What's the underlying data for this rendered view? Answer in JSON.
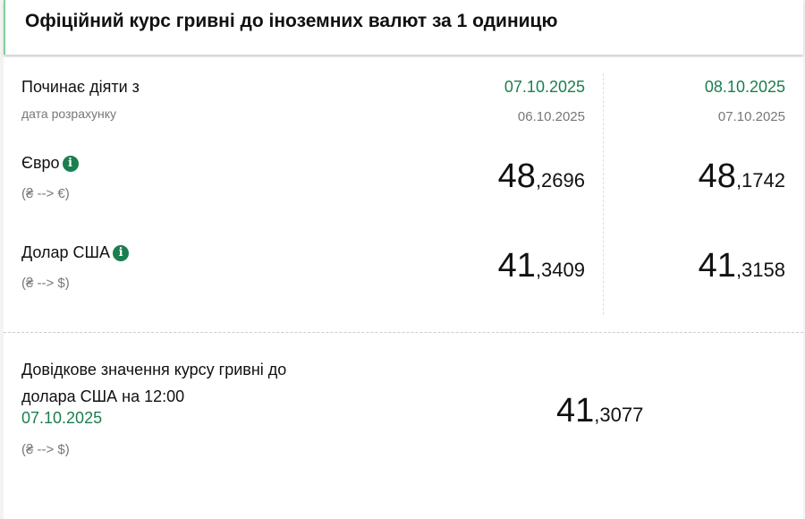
{
  "title": "Офіційний курс гривні до іноземних валют за 1 одиницю",
  "effective_label": "Починає діяти з",
  "calc_label": "дата розрахунку",
  "columns": [
    {
      "effective": "07.10.2025",
      "calc": "06.10.2025",
      "eur": {
        "int": "48",
        "frac": ",2696"
      },
      "usd": {
        "int": "41",
        "frac": ",3409"
      }
    },
    {
      "effective": "08.10.2025",
      "calc": "07.10.2025",
      "eur": {
        "int": "48",
        "frac": ",1742"
      },
      "usd": {
        "int": "41",
        "frac": ",3158"
      }
    }
  ],
  "currencies": {
    "eur": {
      "name": "Євро",
      "pair": "(₴ --> €)"
    },
    "usd": {
      "name": "Долар США",
      "pair": "(₴ --> $)"
    }
  },
  "reference": {
    "line1": "Довідкове значення курсу гривні до",
    "line2": "долара США на 12:00",
    "date": "07.10.2025",
    "pair": "(₴ --> $)",
    "int": "41",
    "frac": ",3077"
  },
  "colors": {
    "accent": "#1b7e4f"
  }
}
